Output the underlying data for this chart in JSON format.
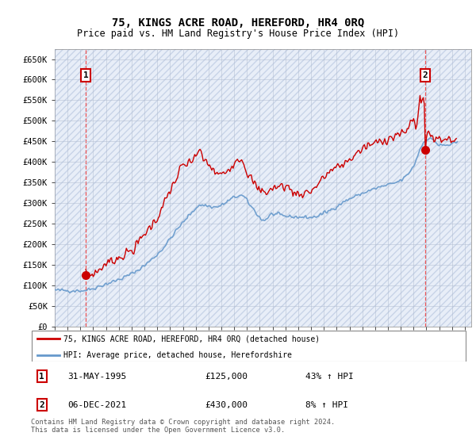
{
  "title": "75, KINGS ACRE ROAD, HEREFORD, HR4 0RQ",
  "subtitle": "Price paid vs. HM Land Registry's House Price Index (HPI)",
  "ylabel_vals": [
    0,
    50000,
    100000,
    150000,
    200000,
    250000,
    300000,
    350000,
    400000,
    450000,
    500000,
    550000,
    600000,
    650000
  ],
  "ylim": [
    0,
    675000
  ],
  "xlim_start": 1993.0,
  "xlim_end": 2025.5,
  "purchase1_x": 1995.42,
  "purchase1_y": 125000,
  "purchase2_x": 2021.92,
  "purchase2_y": 430000,
  "red_line_color": "#cc0000",
  "blue_line_color": "#6699cc",
  "marker_color": "#cc0000",
  "vline_color": "#ee4444",
  "bg_color": "#e8eef8",
  "hatch_color": "#c8d4e8",
  "grid_color": "#b0bcd0",
  "legend_entry1": "75, KINGS ACRE ROAD, HEREFORD, HR4 0RQ (detached house)",
  "legend_entry2": "HPI: Average price, detached house, Herefordshire",
  "ann1_date": "31-MAY-1995",
  "ann1_price": "£125,000",
  "ann1_hpi": "43% ↑ HPI",
  "ann2_date": "06-DEC-2021",
  "ann2_price": "£430,000",
  "ann2_hpi": "8% ↑ HPI",
  "footer": "Contains HM Land Registry data © Crown copyright and database right 2024.\nThis data is licensed under the Open Government Licence v3.0."
}
